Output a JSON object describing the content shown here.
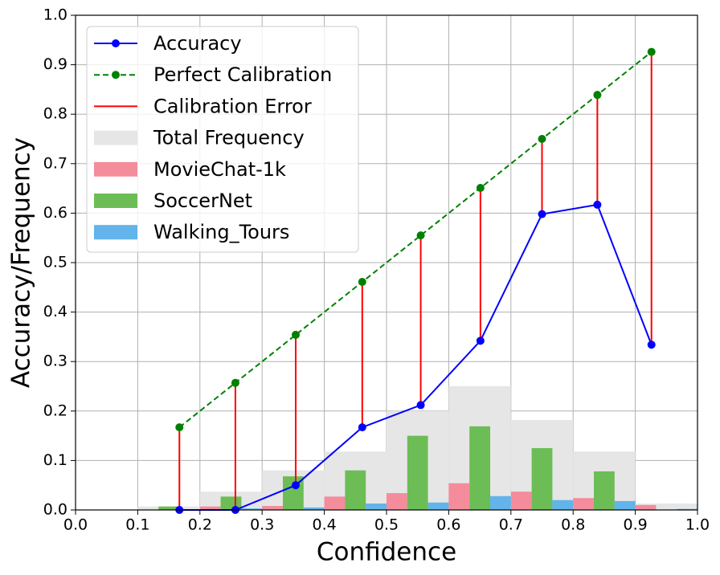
{
  "chart_data": {
    "type": "calibration",
    "xlabel": "Confidence",
    "ylabel": "Accuracy/Frequency",
    "x": [
      0.167,
      0.257,
      0.354,
      0.461,
      0.555,
      0.651,
      0.75,
      0.839,
      0.926
    ],
    "series": [
      {
        "name": "Accuracy",
        "color": "#0000ff",
        "style": "solid",
        "values": [
          0.0,
          0.0,
          0.05,
          0.167,
          0.212,
          0.342,
          0.598,
          0.617,
          0.334
        ]
      },
      {
        "name": "Perfect Calibration",
        "color": "#008000",
        "style": "dashed",
        "values": [
          0.167,
          0.257,
          0.354,
          0.461,
          0.555,
          0.651,
          0.75,
          0.839,
          0.926
        ]
      }
    ],
    "error": {
      "name": "Calibration Error",
      "color": "#ff0000"
    },
    "bins": [
      0,
      0.1,
      0.2,
      0.3,
      0.4,
      0.5,
      0.6,
      0.7,
      0.8,
      0.9,
      1
    ],
    "histograms": [
      {
        "name": "Total Frequency",
        "color": "#e6e6e6",
        "values": [
          0,
          0.007,
          0.037,
          0.08,
          0.118,
          0.2,
          0.25,
          0.182,
          0.118,
          0.013
        ]
      },
      {
        "name": "MovieChat-1k",
        "color": "#f48c9c",
        "values": [
          0,
          0.001,
          0.007,
          0.008,
          0.027,
          0.034,
          0.054,
          0.037,
          0.024,
          0.01
        ]
      },
      {
        "name": "SoccerNet",
        "color": "#6cbd55",
        "values": [
          0,
          0.007,
          0.027,
          0.068,
          0.08,
          0.15,
          0.169,
          0.125,
          0.078,
          0
        ]
      },
      {
        "name": "Walking_Tours",
        "color": "#62b4ea",
        "values": [
          0,
          0,
          0.003,
          0.005,
          0.013,
          0.015,
          0.028,
          0.02,
          0.018,
          0.002
        ]
      }
    ],
    "xlim": [
      0,
      1
    ],
    "ylim": [
      0,
      1
    ],
    "xticks": [
      {
        "value": 0,
        "label": "0.0"
      },
      0.1,
      0.2,
      0.3,
      0.4,
      0.5,
      0.6,
      0.7,
      0.8,
      0.9,
      {
        "value": 1,
        "label": "1.0"
      }
    ],
    "yticks": [
      {
        "value": 0,
        "label": "0.0"
      },
      0.1,
      0.2,
      0.3,
      0.4,
      0.5,
      0.6,
      0.7,
      0.8,
      0.9,
      {
        "value": 1,
        "label": "1.0"
      }
    ],
    "grid": true,
    "legend": "upper left"
  }
}
